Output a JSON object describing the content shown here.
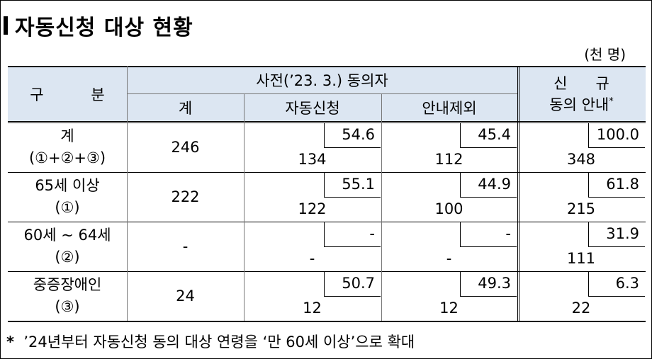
{
  "title": "자동신청 대상 현황",
  "unit": "(천 명)",
  "table": {
    "header": {
      "category": "구          분",
      "group": "사전(’23. 3.) 동의자",
      "total": "계",
      "auto": "자동신청",
      "excluded": "안내제외",
      "new_line1": "신      규",
      "new_line2": "동의 안내",
      "new_note": "*"
    },
    "rows": [
      {
        "label": "계",
        "sublabel": "(①+②+③)",
        "total": "246",
        "auto": {
          "pct": "54.6",
          "count": "134"
        },
        "excluded": {
          "pct": "45.4",
          "count": "112"
        },
        "new": {
          "pct": "100.0",
          "count": "348"
        }
      },
      {
        "label": "65세 이상",
        "sublabel": "(①)",
        "total": "222",
        "auto": {
          "pct": "55.1",
          "count": "122"
        },
        "excluded": {
          "pct": "44.9",
          "count": "100"
        },
        "new": {
          "pct": "61.8",
          "count": "215"
        }
      },
      {
        "label": "60세 ~ 64세",
        "sublabel": "(②)",
        "total": "-",
        "auto": {
          "pct": "-",
          "count": "-"
        },
        "excluded": {
          "pct": "-",
          "count": "-"
        },
        "new": {
          "pct": "31.9",
          "count": "111"
        }
      },
      {
        "label": "중증장애인",
        "sublabel": "(③)",
        "total": "24",
        "auto": {
          "pct": "50.7",
          "count": "12"
        },
        "excluded": {
          "pct": "49.3",
          "count": "12"
        },
        "new": {
          "pct": "6.3",
          "count": "22"
        }
      }
    ]
  },
  "footnote": {
    "marker": "*",
    "text": "’24년부터 자동신청 동의 대상 연령을 ‘만 60세 이상’으로 확대"
  }
}
